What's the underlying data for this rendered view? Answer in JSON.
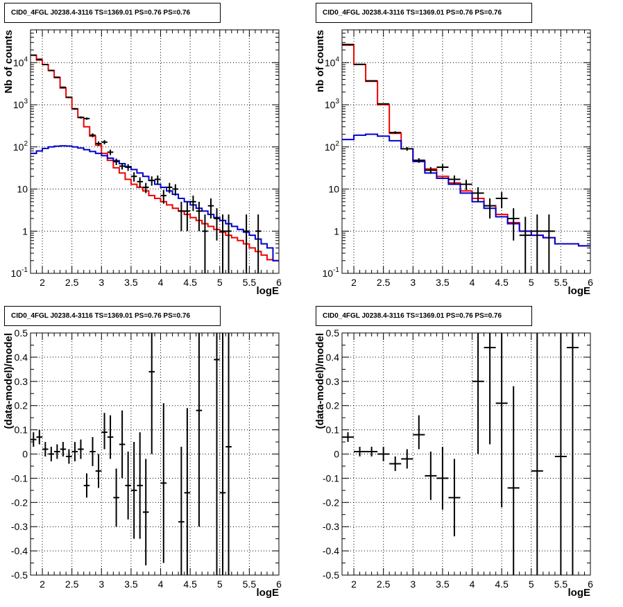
{
  "colors": {
    "data": "#000000",
    "total_model": "#ee0000",
    "source_model": "#0000cc",
    "grid": "#000000"
  },
  "chart_data": [
    {
      "id": "top-left",
      "type": "line",
      "title": "CID0_4FGL J0238.4-3116 TS=1369.01 PS=0.76 PS=0.76",
      "xlabel": "logE",
      "ylabel": "Nb of counts",
      "xlim": [
        1.8,
        6.0
      ],
      "ylim": [
        0.1,
        60000
      ],
      "yscale": "log",
      "grid": true,
      "xticks": [
        "2",
        "2.5",
        "3",
        "3.5",
        "4",
        "4.5",
        "5",
        "5.5",
        "6"
      ],
      "yticks": [
        "10^-1",
        "1",
        "10",
        "10^2",
        "10^3",
        "10^4"
      ],
      "binning": {
        "start": 1.8,
        "width": 0.1
      },
      "series": [
        {
          "role": "total_model",
          "values": [
            15000,
            11500,
            9000,
            6500,
            4400,
            2500,
            1500,
            800,
            500,
            300,
            180,
            110,
            70,
            48,
            32,
            24,
            17,
            13,
            11,
            9,
            7,
            6,
            5,
            4.2,
            3.5,
            3,
            2.5,
            2.1,
            1.8,
            1.5,
            1.3,
            1.1,
            0.95,
            0.8,
            0.7,
            0.6,
            0.5,
            0.4,
            0.33,
            0.27,
            0.21,
            0.2
          ]
        },
        {
          "role": "source_model",
          "values": [
            70,
            80,
            92,
            100,
            104,
            106,
            105,
            100,
            94,
            86,
            78,
            70,
            62,
            54,
            47,
            40,
            34,
            29,
            24,
            20,
            16,
            13,
            11,
            9,
            7.5,
            6,
            5,
            4.2,
            3.5,
            3,
            2.5,
            2.1,
            1.8,
            1.5,
            1.3,
            1.1,
            0.95,
            0.8,
            0.65,
            0.5,
            0.4,
            0.2
          ]
        }
      ],
      "points": [
        {
          "x": 1.85,
          "y": 15000,
          "ylo": 14500,
          "yhi": 15500
        },
        {
          "x": 1.95,
          "y": 12000,
          "ylo": 11500,
          "yhi": 12500
        },
        {
          "x": 2.05,
          "y": 9000,
          "ylo": 8700,
          "yhi": 9300
        },
        {
          "x": 2.15,
          "y": 6500,
          "ylo": 6300,
          "yhi": 6700
        },
        {
          "x": 2.25,
          "y": 4500,
          "ylo": 4350,
          "yhi": 4650
        },
        {
          "x": 2.35,
          "y": 2600,
          "ylo": 2500,
          "yhi": 2700
        },
        {
          "x": 2.45,
          "y": 1500,
          "ylo": 1440,
          "yhi": 1560
        },
        {
          "x": 2.55,
          "y": 800,
          "ylo": 760,
          "yhi": 840
        },
        {
          "x": 2.65,
          "y": 500,
          "ylo": 470,
          "yhi": 530
        },
        {
          "x": 2.75,
          "y": 470,
          "ylo": 440,
          "yhi": 500
        },
        {
          "x": 2.85,
          "y": 190,
          "ylo": 170,
          "yhi": 210
        },
        {
          "x": 2.95,
          "y": 120,
          "ylo": 105,
          "yhi": 135
        },
        {
          "x": 3.05,
          "y": 130,
          "ylo": 115,
          "yhi": 145
        },
        {
          "x": 3.15,
          "y": 75,
          "ylo": 64,
          "yhi": 86
        },
        {
          "x": 3.25,
          "y": 45,
          "ylo": 37,
          "yhi": 53
        },
        {
          "x": 3.35,
          "y": 35,
          "ylo": 29,
          "yhi": 41
        },
        {
          "x": 3.45,
          "y": 33,
          "ylo": 27,
          "yhi": 39
        },
        {
          "x": 3.55,
          "y": 20,
          "ylo": 15,
          "yhi": 25
        },
        {
          "x": 3.65,
          "y": 15,
          "ylo": 11,
          "yhi": 19
        },
        {
          "x": 3.75,
          "y": 11,
          "ylo": 8,
          "yhi": 14
        },
        {
          "x": 3.85,
          "y": 16,
          "ylo": 12,
          "yhi": 20
        },
        {
          "x": 3.95,
          "y": 17,
          "ylo": 13,
          "yhi": 21
        },
        {
          "x": 4.05,
          "y": 7,
          "ylo": 4.5,
          "yhi": 9.5
        },
        {
          "x": 4.15,
          "y": 11,
          "ylo": 8,
          "yhi": 14
        },
        {
          "x": 4.25,
          "y": 10,
          "ylo": 7,
          "yhi": 13
        },
        {
          "x": 4.35,
          "y": 3,
          "ylo": 1,
          "yhi": 5
        },
        {
          "x": 4.45,
          "y": 3,
          "ylo": 1,
          "yhi": 5
        },
        {
          "x": 4.55,
          "y": 5,
          "ylo": 3,
          "yhi": 7
        },
        {
          "x": 4.65,
          "y": 3,
          "ylo": 1,
          "yhi": 5
        },
        {
          "x": 4.75,
          "y": 1,
          "ylo": 0.1,
          "yhi": 2.5
        },
        {
          "x": 4.85,
          "y": 4,
          "ylo": 2,
          "yhi": 6
        },
        {
          "x": 4.95,
          "y": 2,
          "ylo": 0.6,
          "yhi": 3.5
        },
        {
          "x": 5.05,
          "y": 1,
          "ylo": 0.1,
          "yhi": 2.5
        },
        {
          "x": 5.15,
          "y": 1,
          "ylo": 0.1,
          "yhi": 2.5
        },
        {
          "x": 5.45,
          "y": 1,
          "ylo": 0.1,
          "yhi": 2.5
        },
        {
          "x": 5.65,
          "y": 1,
          "ylo": 0.1,
          "yhi": 2.5
        }
      ]
    },
    {
      "id": "top-right",
      "type": "line",
      "title": "CID0_4FGL J0238.4-3116 TS=1369.01 PS=0.76 PS=0.76",
      "xlabel": "logE",
      "ylabel": "nb of counts",
      "xlim": [
        1.8,
        6.0
      ],
      "ylim": [
        0.1,
        60000
      ],
      "yscale": "log",
      "grid": true,
      "xticks": [
        "2",
        "2.5",
        "3",
        "3.5",
        "4",
        "4.5",
        "5",
        "5.5",
        "6"
      ],
      "yticks": [
        "10^-1",
        "1",
        "10",
        "10^2",
        "10^3",
        "10^4"
      ],
      "binning": {
        "start": 1.8,
        "width": 0.2
      },
      "series": [
        {
          "role": "total_model",
          "values": [
            26000,
            9000,
            3600,
            1000,
            210,
            90,
            48,
            30,
            20,
            14,
            9,
            6,
            4,
            2.5,
            1.6,
            1.0,
            0.8,
            0.7,
            0.5,
            0.5,
            0.45
          ]
        },
        {
          "role": "source_model",
          "values": [
            150,
            190,
            200,
            180,
            140,
            90,
            45,
            24,
            18,
            13,
            8,
            5,
            3.5,
            2.2,
            1.5,
            1.0,
            0.8,
            0.7,
            0.5,
            0.5,
            0.45
          ]
        }
      ],
      "points": [
        {
          "x": 1.9,
          "y": 27000,
          "ylo": 26500,
          "yhi": 27500
        },
        {
          "x": 2.1,
          "y": 9100,
          "ylo": 8900,
          "yhi": 9300
        },
        {
          "x": 2.3,
          "y": 3700,
          "ylo": 3600,
          "yhi": 3800
        },
        {
          "x": 2.5,
          "y": 1050,
          "ylo": 1020,
          "yhi": 1080
        },
        {
          "x": 2.7,
          "y": 220,
          "ylo": 205,
          "yhi": 235
        },
        {
          "x": 2.9,
          "y": 90,
          "ylo": 81,
          "yhi": 99
        },
        {
          "x": 3.1,
          "y": 48,
          "ylo": 42,
          "yhi": 54
        },
        {
          "x": 3.3,
          "y": 28,
          "ylo": 23,
          "yhi": 33
        },
        {
          "x": 3.5,
          "y": 33,
          "ylo": 27,
          "yhi": 39
        },
        {
          "x": 3.7,
          "y": 17,
          "ylo": 13,
          "yhi": 21
        },
        {
          "x": 3.9,
          "y": 13,
          "ylo": 9.5,
          "yhi": 16.5
        },
        {
          "x": 4.1,
          "y": 8,
          "ylo": 5,
          "yhi": 11
        },
        {
          "x": 4.3,
          "y": 4,
          "ylo": 2,
          "yhi": 6
        },
        {
          "x": 4.5,
          "y": 6,
          "ylo": 3.5,
          "yhi": 8.5
        },
        {
          "x": 4.7,
          "y": 2,
          "ylo": 0.6,
          "yhi": 3.5
        },
        {
          "x": 4.9,
          "y": 0.8,
          "ylo": 0.1,
          "yhi": 2.2
        },
        {
          "x": 5.1,
          "y": 1,
          "ylo": 0.1,
          "yhi": 2.5
        },
        {
          "x": 5.3,
          "y": 1,
          "ylo": 0.1,
          "yhi": 2.5
        }
      ]
    },
    {
      "id": "bottom-left",
      "type": "scatter",
      "title": "CID0_4FGL J0238.4-3116 TS=1369.01 PS=0.76 PS=0.76",
      "xlabel": "logE",
      "ylabel": "(data-model)/model",
      "xlim": [
        1.8,
        6.0
      ],
      "ylim": [
        -0.5,
        0.5
      ],
      "grid": true,
      "xticks": [
        "2",
        "2.5",
        "3",
        "3.5",
        "4",
        "4.5",
        "5",
        "5.5",
        "6"
      ],
      "yticks": [
        "-0.5",
        "-0.4",
        "-0.3",
        "-0.2",
        "-0.1",
        "0",
        "0.1",
        "0.2",
        "0.3",
        "0.4",
        "0.5"
      ],
      "points": [
        {
          "x": 1.85,
          "y": 0.06,
          "ylo": 0.03,
          "yhi": 0.09
        },
        {
          "x": 1.95,
          "y": 0.07,
          "ylo": 0.04,
          "yhi": 0.1
        },
        {
          "x": 2.05,
          "y": 0.02,
          "ylo": -0.01,
          "yhi": 0.05
        },
        {
          "x": 2.15,
          "y": 0.0,
          "ylo": -0.03,
          "yhi": 0.03
        },
        {
          "x": 2.25,
          "y": 0.01,
          "ylo": -0.02,
          "yhi": 0.04
        },
        {
          "x": 2.35,
          "y": 0.02,
          "ylo": -0.01,
          "yhi": 0.05
        },
        {
          "x": 2.45,
          "y": -0.01,
          "ylo": -0.04,
          "yhi": 0.02
        },
        {
          "x": 2.55,
          "y": 0.01,
          "ylo": -0.03,
          "yhi": 0.05
        },
        {
          "x": 2.65,
          "y": 0.02,
          "ylo": -0.02,
          "yhi": 0.06
        },
        {
          "x": 2.75,
          "y": -0.13,
          "ylo": -0.18,
          "yhi": -0.08
        },
        {
          "x": 2.85,
          "y": 0.01,
          "ylo": -0.05,
          "yhi": 0.07
        },
        {
          "x": 2.95,
          "y": -0.07,
          "ylo": -0.14,
          "yhi": 0.0
        },
        {
          "x": 3.05,
          "y": 0.09,
          "ylo": 0.02,
          "yhi": 0.17
        },
        {
          "x": 3.15,
          "y": 0.07,
          "ylo": -0.02,
          "yhi": 0.16
        },
        {
          "x": 3.25,
          "y": -0.18,
          "ylo": -0.3,
          "yhi": -0.06
        },
        {
          "x": 3.35,
          "y": 0.04,
          "ylo": -0.1,
          "yhi": 0.18
        },
        {
          "x": 3.45,
          "y": -0.13,
          "ylo": -0.27,
          "yhi": 0.01
        },
        {
          "x": 3.55,
          "y": -0.15,
          "ylo": -0.35,
          "yhi": 0.05
        },
        {
          "x": 3.65,
          "y": -0.13,
          "ylo": -0.35,
          "yhi": 0.09
        },
        {
          "x": 3.75,
          "y": -0.24,
          "ylo": -0.46,
          "yhi": -0.02
        },
        {
          "x": 3.85,
          "y": 0.34,
          "ylo": 0.0,
          "yhi": 0.5
        },
        {
          "x": 4.05,
          "y": -0.12,
          "ylo": -0.45,
          "yhi": 0.21
        },
        {
          "x": 4.35,
          "y": -0.28,
          "ylo": -0.5,
          "yhi": 0.03
        },
        {
          "x": 4.45,
          "y": -0.16,
          "ylo": -0.5,
          "yhi": 0.19
        },
        {
          "x": 4.65,
          "y": 0.18,
          "ylo": -0.3,
          "yhi": 0.5
        },
        {
          "x": 4.95,
          "y": 0.39,
          "ylo": -0.5,
          "yhi": 0.5
        },
        {
          "x": 5.05,
          "y": -0.16,
          "ylo": -0.5,
          "yhi": 0.5
        },
        {
          "x": 5.15,
          "y": 0.03,
          "ylo": -0.5,
          "yhi": 0.5
        }
      ]
    },
    {
      "id": "bottom-right",
      "type": "scatter",
      "title": "CID0_4FGL J0238.4-3116 TS=1369.01 PS=0.76 PS=0.76",
      "xlabel": "logE",
      "ylabel": "(data-model)/model",
      "xlim": [
        1.8,
        6.0
      ],
      "ylim": [
        -0.5,
        0.5
      ],
      "grid": true,
      "xticks": [
        "2",
        "2.5",
        "3",
        "3.5",
        "4",
        "4.5",
        "5",
        "5.5",
        "6"
      ],
      "yticks": [
        "-0.5",
        "-0.4",
        "-0.3",
        "-0.2",
        "-0.1",
        "0",
        "0.1",
        "0.2",
        "0.3",
        "0.4",
        "0.5"
      ],
      "points": [
        {
          "x": 1.9,
          "y": 0.07,
          "ylo": 0.05,
          "yhi": 0.09
        },
        {
          "x": 2.1,
          "y": 0.01,
          "ylo": -0.01,
          "yhi": 0.03
        },
        {
          "x": 2.3,
          "y": 0.01,
          "ylo": -0.01,
          "yhi": 0.03
        },
        {
          "x": 2.5,
          "y": 0.0,
          "ylo": -0.03,
          "yhi": 0.03
        },
        {
          "x": 2.7,
          "y": -0.04,
          "ylo": -0.07,
          "yhi": -0.01
        },
        {
          "x": 2.9,
          "y": -0.02,
          "ylo": -0.06,
          "yhi": 0.02
        },
        {
          "x": 3.1,
          "y": 0.08,
          "ylo": 0.02,
          "yhi": 0.16
        },
        {
          "x": 3.3,
          "y": -0.09,
          "ylo": -0.19,
          "yhi": 0.01
        },
        {
          "x": 3.5,
          "y": -0.1,
          "ylo": -0.23,
          "yhi": 0.03
        },
        {
          "x": 3.7,
          "y": -0.18,
          "ylo": -0.34,
          "yhi": -0.02
        },
        {
          "x": 4.1,
          "y": 0.3,
          "ylo": 0.0,
          "yhi": 0.5
        },
        {
          "x": 4.3,
          "y": 0.44,
          "ylo": 0.04,
          "yhi": 0.5
        },
        {
          "x": 4.5,
          "y": 0.21,
          "ylo": -0.22,
          "yhi": 0.5
        },
        {
          "x": 4.7,
          "y": -0.14,
          "ylo": -0.5,
          "yhi": 0.28
        },
        {
          "x": 5.1,
          "y": -0.07,
          "ylo": -0.5,
          "yhi": 0.5
        },
        {
          "x": 5.5,
          "y": -0.01,
          "ylo": -0.5,
          "yhi": 0.5
        },
        {
          "x": 5.7,
          "y": 0.44,
          "ylo": -0.5,
          "yhi": 0.5
        }
      ]
    }
  ]
}
